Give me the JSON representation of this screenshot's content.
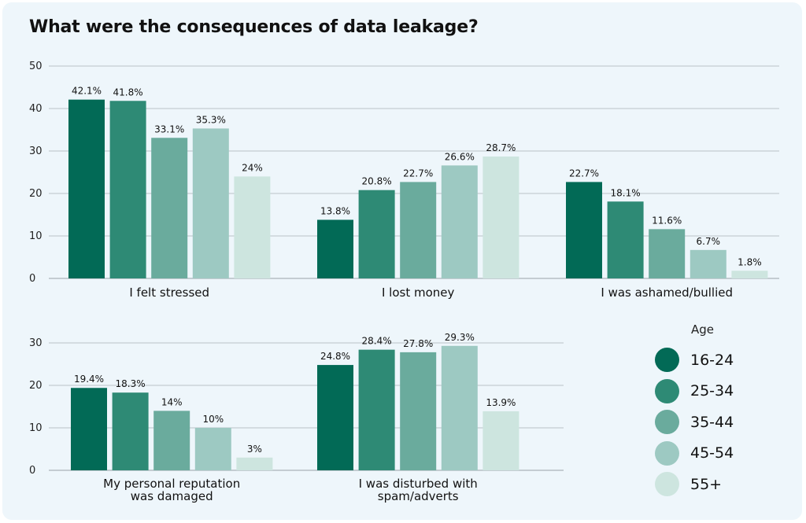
{
  "title": "What were the consequences of data leakage?",
  "colors": [
    "#026a56",
    "#2e8a75",
    "#6aab9d",
    "#9dc9c2",
    "#cde5df"
  ],
  "legend": {
    "title": "Age",
    "items": [
      "16-24",
      "25-34",
      "35-44",
      "45-54",
      "55+"
    ]
  },
  "chart_data": [
    {
      "type": "bar",
      "categories": [
        "I felt stressed",
        "I lost money",
        "I was ashamed/bullied"
      ],
      "series": [
        {
          "name": "16-24",
          "values": [
            42.1,
            13.8,
            22.7
          ],
          "labels": [
            "42.1%",
            "13.8%",
            "22.7%"
          ]
        },
        {
          "name": "25-34",
          "values": [
            41.8,
            20.8,
            18.1
          ],
          "labels": [
            "41.8%",
            "20.8%",
            "18.1%"
          ]
        },
        {
          "name": "35-44",
          "values": [
            33.1,
            22.7,
            11.6
          ],
          "labels": [
            "33.1%",
            "22.7%",
            "11.6%"
          ]
        },
        {
          "name": "45-54",
          "values": [
            35.3,
            26.6,
            6.7
          ],
          "labels": [
            "35.3%",
            "26.6%",
            "6.7%"
          ]
        },
        {
          "name": "55+",
          "values": [
            24,
            28.7,
            1.8
          ],
          "labels": [
            "24%",
            "28.7%",
            "1.8%"
          ]
        }
      ],
      "ylim": [
        0,
        50
      ],
      "yticks": [
        "0",
        "10",
        "20",
        "30",
        "40",
        "50"
      ],
      "grid": true
    },
    {
      "type": "bar",
      "categories": [
        [
          "My personal reputation",
          "was damaged"
        ],
        [
          "I was disturbed with",
          "spam/adverts"
        ]
      ],
      "series": [
        {
          "name": "16-24",
          "values": [
            19.4,
            24.8
          ],
          "labels": [
            "19.4%",
            "24.8%"
          ]
        },
        {
          "name": "25-34",
          "values": [
            18.3,
            28.4
          ],
          "labels": [
            "18.3%",
            "28.4%"
          ]
        },
        {
          "name": "35-44",
          "values": [
            14,
            27.8
          ],
          "labels": [
            "14%",
            "27.8%"
          ]
        },
        {
          "name": "45-54",
          "values": [
            10,
            29.3
          ],
          "labels": [
            "10%",
            "29.3%"
          ]
        },
        {
          "name": "55+",
          "values": [
            3,
            13.9
          ],
          "labels": [
            "3%",
            "13.9%"
          ]
        }
      ],
      "ylim": [
        0,
        30
      ],
      "yticks": [
        "0",
        "10",
        "20",
        "30"
      ],
      "grid": true
    }
  ]
}
